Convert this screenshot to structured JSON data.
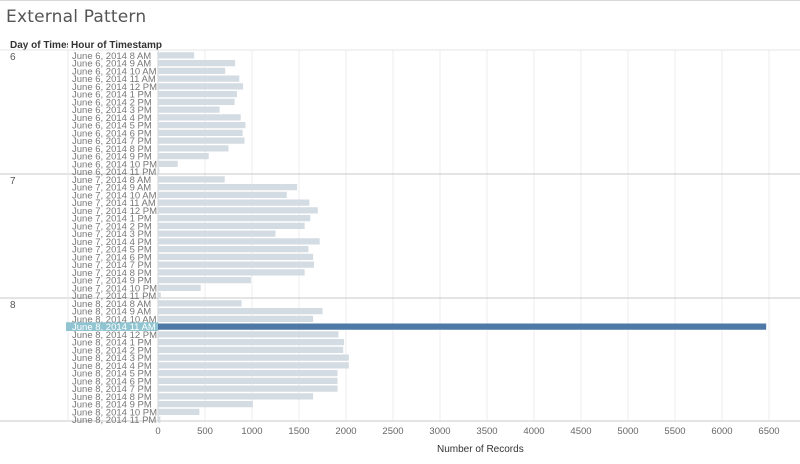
{
  "title": "External Pattern",
  "headers": {
    "day": "Day of Timestamp",
    "hour": "Hour of Timestamp"
  },
  "chart_data": {
    "type": "bar",
    "orientation": "horizontal",
    "xlabel": "Number of Records",
    "xlim": [
      0,
      6500
    ],
    "xticks": [
      0,
      500,
      1000,
      1500,
      2000,
      2500,
      3000,
      3500,
      4000,
      4500,
      5000,
      5500,
      6000,
      6500
    ],
    "grid": true,
    "colors": {
      "default": "#d3dbe3",
      "highlight": "#4e79a7",
      "highlight_label_bg": "#8fc4d0"
    },
    "highlighted": {
      "day": "8",
      "label": "June 8, 2014 11 AM"
    },
    "groups": [
      {
        "day": "6",
        "rows": [
          {
            "label": "June 6, 2014 8 AM",
            "value": 385
          },
          {
            "label": "June 6, 2014 9 AM",
            "value": 820
          },
          {
            "label": "June 6, 2014 10 AM",
            "value": 715
          },
          {
            "label": "June 6, 2014 11 AM",
            "value": 865
          },
          {
            "label": "June 6, 2014 12 PM",
            "value": 905
          },
          {
            "label": "June 6, 2014 1 PM",
            "value": 840
          },
          {
            "label": "June 6, 2014 2 PM",
            "value": 815
          },
          {
            "label": "June 6, 2014 3 PM",
            "value": 655
          },
          {
            "label": "June 6, 2014 4 PM",
            "value": 880
          },
          {
            "label": "June 6, 2014 5 PM",
            "value": 930
          },
          {
            "label": "June 6, 2014 6 PM",
            "value": 900
          },
          {
            "label": "June 6, 2014 7 PM",
            "value": 920
          },
          {
            "label": "June 6, 2014 8 PM",
            "value": 750
          },
          {
            "label": "June 6, 2014 9 PM",
            "value": 540
          },
          {
            "label": "June 6, 2014 10 PM",
            "value": 210
          },
          {
            "label": "June 6, 2014 11 PM",
            "value": 15
          }
        ]
      },
      {
        "day": "7",
        "rows": [
          {
            "label": "June 7, 2014 8 AM",
            "value": 710
          },
          {
            "label": "June 7, 2014 9 AM",
            "value": 1480
          },
          {
            "label": "June 7, 2014 10 AM",
            "value": 1370
          },
          {
            "label": "June 7, 2014 11 AM",
            "value": 1610
          },
          {
            "label": "June 7, 2014 12 PM",
            "value": 1700
          },
          {
            "label": "June 7, 2014 1 PM",
            "value": 1620
          },
          {
            "label": "June 7, 2014 2 PM",
            "value": 1560
          },
          {
            "label": "June 7, 2014 3 PM",
            "value": 1250
          },
          {
            "label": "June 7, 2014 4 PM",
            "value": 1720
          },
          {
            "label": "June 7, 2014 5 PM",
            "value": 1600
          },
          {
            "label": "June 7, 2014 6 PM",
            "value": 1650
          },
          {
            "label": "June 7, 2014 7 PM",
            "value": 1660
          },
          {
            "label": "June 7, 2014 8 PM",
            "value": 1560
          },
          {
            "label": "June 7, 2014 9 PM",
            "value": 990
          },
          {
            "label": "June 7, 2014 10 PM",
            "value": 455
          },
          {
            "label": "June 7, 2014 11 PM",
            "value": 30
          }
        ]
      },
      {
        "day": "8",
        "rows": [
          {
            "label": "June 8, 2014 8 AM",
            "value": 890
          },
          {
            "label": "June 8, 2014 9 AM",
            "value": 1750
          },
          {
            "label": "June 8, 2014 10 AM",
            "value": 1650
          },
          {
            "label": "June 8, 2014 11 AM",
            "value": 6470
          },
          {
            "label": "June 8, 2014 12 PM",
            "value": 1920
          },
          {
            "label": "June 8, 2014 1 PM",
            "value": 1980
          },
          {
            "label": "June 8, 2014 2 PM",
            "value": 1970
          },
          {
            "label": "June 8, 2014 3 PM",
            "value": 2030
          },
          {
            "label": "June 8, 2014 4 PM",
            "value": 2030
          },
          {
            "label": "June 8, 2014 5 PM",
            "value": 1910
          },
          {
            "label": "June 8, 2014 6 PM",
            "value": 1910
          },
          {
            "label": "June 8, 2014 7 PM",
            "value": 1910
          },
          {
            "label": "June 8, 2014 8 PM",
            "value": 1650
          },
          {
            "label": "June 8, 2014 9 PM",
            "value": 1010
          },
          {
            "label": "June 8, 2014 10 PM",
            "value": 440
          },
          {
            "label": "June 8, 2014 11 PM",
            "value": 25
          }
        ]
      }
    ]
  }
}
